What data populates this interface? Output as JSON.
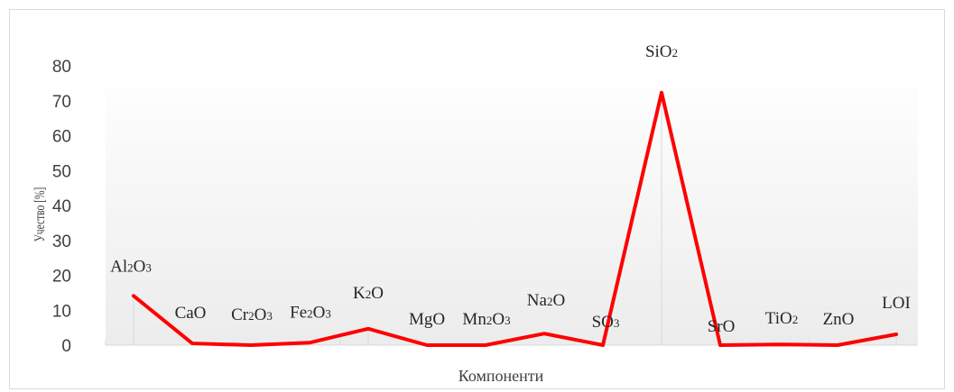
{
  "chart_data": {
    "type": "line",
    "title": "",
    "xlabel": "Компоненти",
    "ylabel": "Учество [%]",
    "ylim": [
      0,
      80
    ],
    "yticks": [
      0,
      10,
      20,
      30,
      40,
      50,
      60,
      70,
      80
    ],
    "grid": false,
    "legend": "none",
    "categories": [
      {
        "pre": "Al",
        "s1": "2",
        "mid": "O",
        "s2": "3"
      },
      {
        "pre": "CaO",
        "s1": "",
        "mid": "",
        "s2": ""
      },
      {
        "pre": "Cr",
        "s1": "2",
        "mid": "O",
        "s2": "3"
      },
      {
        "pre": "Fe",
        "s1": "2",
        "mid": "O",
        "s2": "3"
      },
      {
        "pre": "K",
        "s1": "2",
        "mid": "O",
        "s2": ""
      },
      {
        "pre": "MgO",
        "s1": "",
        "mid": "",
        "s2": ""
      },
      {
        "pre": "Mn",
        "s1": "2",
        "mid": "O",
        "s2": "3"
      },
      {
        "pre": "Na",
        "s1": "2",
        "mid": "O",
        "s2": ""
      },
      {
        "pre": "SO",
        "s1": "",
        "mid": "",
        "s2": "3"
      },
      {
        "pre": "SiO",
        "s1": "",
        "mid": "",
        "s2": "2"
      },
      {
        "pre": "SrO",
        "s1": "",
        "mid": "",
        "s2": ""
      },
      {
        "pre": "TiO",
        "s1": "",
        "mid": "",
        "s2": "2"
      },
      {
        "pre": "ZnO",
        "s1": "",
        "mid": "",
        "s2": ""
      },
      {
        "pre": "LOI",
        "s1": "",
        "mid": "",
        "s2": ""
      }
    ],
    "series": [
      {
        "values": [
          14.1,
          0.5,
          0.0,
          0.7,
          4.7,
          0.0,
          0.0,
          3.3,
          0.0,
          72.3,
          0.0,
          0.2,
          0.0,
          3.1
        ]
      }
    ],
    "line_color": "#ff0000"
  }
}
